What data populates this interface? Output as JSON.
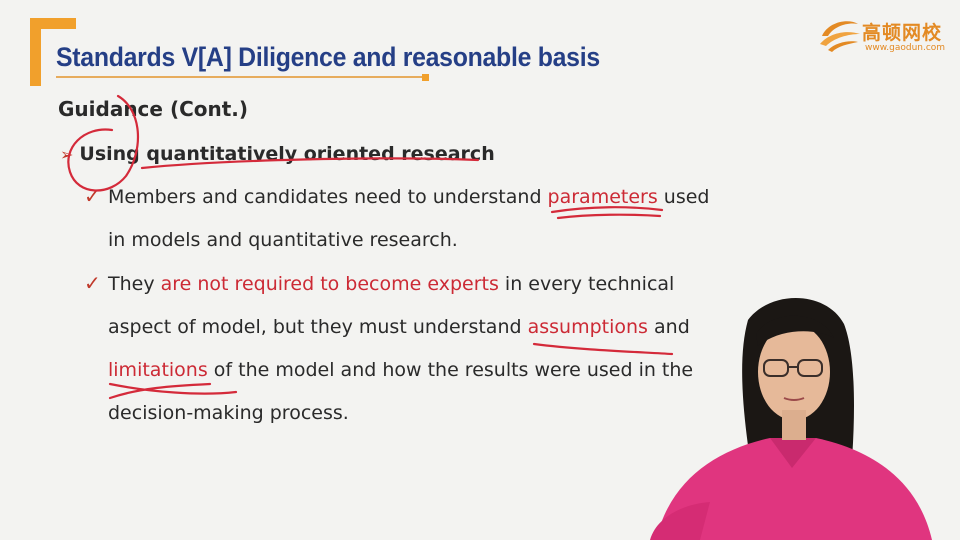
{
  "logo": {
    "name": "高顿网校",
    "url": "www.gaodun.com",
    "color": "#e38a24"
  },
  "slide": {
    "title": "Standards V[A] Diligence and reasonable basis",
    "subheading": "Guidance (Cont.)",
    "bullet": "Using quantitatively oriented research",
    "point1": {
      "line1_pre": "Members and candidates need to understand ",
      "line1_hl": "parameters",
      "line1_post": " used",
      "line2": "in models and quantitative research."
    },
    "point2": {
      "line1_pre": "They ",
      "line1_hl": "are not required to become experts",
      "line1_post": " in every technical",
      "line2_pre": "aspect of model, but they must understand ",
      "line2_hl": "assumptions",
      "line2_post": " and",
      "line3_hl": "limitations",
      "line3_post": " of the model and how the results were used in the",
      "line4": "decision-making process."
    }
  },
  "colors": {
    "title": "#253f86",
    "accent": "#f1a02c",
    "highlight": "#cc2a35",
    "ink": "#d42a3a"
  },
  "icons": {
    "bullet": "arrow-bullet-icon",
    "check": "check-mark-icon",
    "logo": "gaodun-logo-icon"
  }
}
